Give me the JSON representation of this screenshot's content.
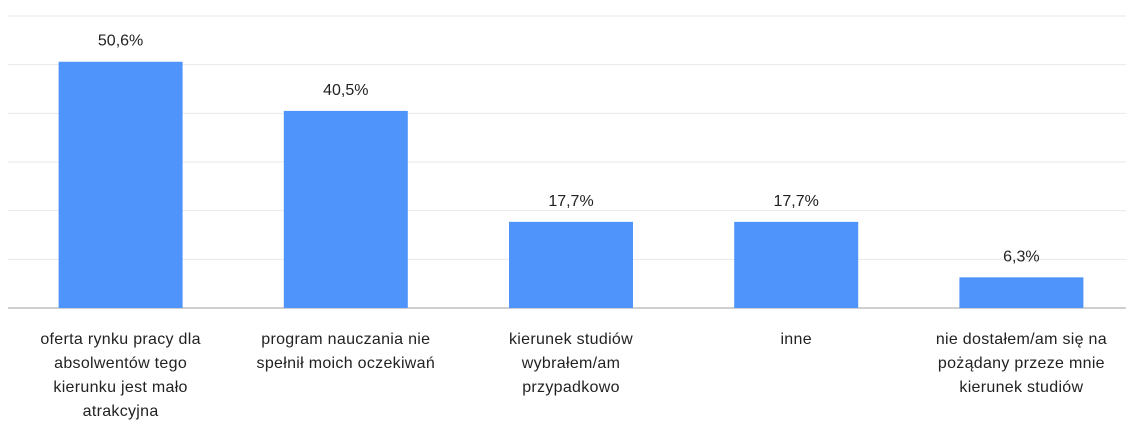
{
  "chart_data": {
    "type": "bar",
    "categories": [
      "oferta rynku pracy dla absolwentów tego kierunku jest mało atrakcyjna",
      "program nauczania nie spełnił moich oczekiwań",
      "kierunek studiów wybrałem/am przypadkowo",
      "inne",
      "nie dostałem/am się na pożądany przeze mnie kierunek studiów"
    ],
    "values": [
      50.6,
      40.5,
      17.7,
      17.7,
      6.3
    ],
    "value_labels": [
      "50,6%",
      "40,5%",
      "17,7%",
      "17,7%",
      "6,3%"
    ],
    "color": "#4f94fa",
    "ylim": [
      0,
      60
    ],
    "yticks": [
      0,
      10,
      20,
      30,
      40,
      50,
      60
    ],
    "grid": true
  }
}
